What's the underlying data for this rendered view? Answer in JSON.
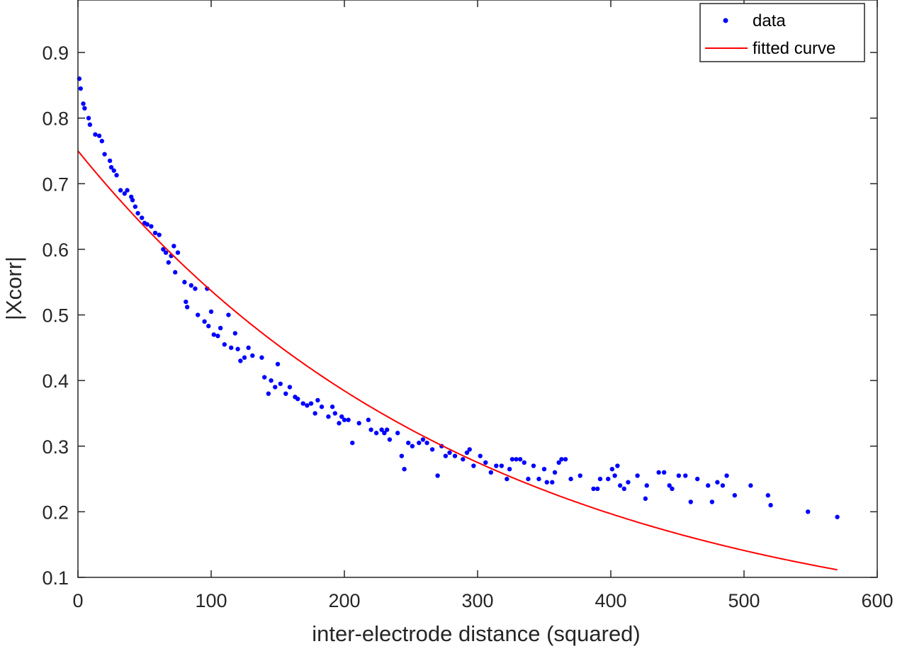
{
  "chart_data": {
    "type": "scatter",
    "title": "",
    "xlabel": "inter-electrode distance (squared)",
    "ylabel": "|Xcorr|",
    "xlim": [
      0,
      600
    ],
    "ylim": [
      0.1,
      0.98
    ],
    "xticks": [
      0,
      100,
      200,
      300,
      400,
      500,
      600
    ],
    "xtick_labels": [
      "0",
      "100",
      "200",
      "300",
      "400",
      "500",
      "600"
    ],
    "yticks": [
      0.1,
      0.2,
      0.3,
      0.4,
      0.5,
      0.6,
      0.7,
      0.8,
      0.9
    ],
    "ytick_labels": [
      "0.1",
      "0.2",
      "0.3",
      "0.4",
      "0.5",
      "0.6",
      "0.7",
      "0.8",
      "0.9"
    ],
    "grid": false,
    "legend_position": "top-right",
    "series": [
      {
        "name": "data",
        "kind": "points",
        "color": "#0000ff",
        "points": [
          [
            1,
            0.86
          ],
          [
            2,
            0.845
          ],
          [
            4,
            0.822
          ],
          [
            5,
            0.815
          ],
          [
            8,
            0.8
          ],
          [
            9,
            0.79
          ],
          [
            13,
            0.775
          ],
          [
            16,
            0.773
          ],
          [
            18,
            0.765
          ],
          [
            20,
            0.745
          ],
          [
            24,
            0.735
          ],
          [
            25,
            0.725
          ],
          [
            27,
            0.72
          ],
          [
            29,
            0.713
          ],
          [
            32,
            0.69
          ],
          [
            35,
            0.685
          ],
          [
            37,
            0.69
          ],
          [
            40,
            0.68
          ],
          [
            41,
            0.675
          ],
          [
            43,
            0.665
          ],
          [
            45,
            0.655
          ],
          [
            48,
            0.648
          ],
          [
            50,
            0.64
          ],
          [
            52,
            0.638
          ],
          [
            55,
            0.635
          ],
          [
            58,
            0.625
          ],
          [
            61,
            0.622
          ],
          [
            64,
            0.6
          ],
          [
            66,
            0.595
          ],
          [
            68,
            0.58
          ],
          [
            70,
            0.59
          ],
          [
            72,
            0.605
          ],
          [
            73,
            0.565
          ],
          [
            75,
            0.595
          ],
          [
            80,
            0.55
          ],
          [
            81,
            0.52
          ],
          [
            82,
            0.512
          ],
          [
            85,
            0.545
          ],
          [
            88,
            0.54
          ],
          [
            90,
            0.5
          ],
          [
            95,
            0.49
          ],
          [
            97,
            0.54
          ],
          [
            98,
            0.483
          ],
          [
            100,
            0.505
          ],
          [
            102,
            0.47
          ],
          [
            105,
            0.468
          ],
          [
            107,
            0.48
          ],
          [
            110,
            0.455
          ],
          [
            113,
            0.5
          ],
          [
            115,
            0.45
          ],
          [
            118,
            0.472
          ],
          [
            120,
            0.448
          ],
          [
            122,
            0.43
          ],
          [
            125,
            0.435
          ],
          [
            128,
            0.45
          ],
          [
            131,
            0.438
          ],
          [
            138,
            0.435
          ],
          [
            140,
            0.405
          ],
          [
            143,
            0.38
          ],
          [
            145,
            0.4
          ],
          [
            148,
            0.39
          ],
          [
            150,
            0.425
          ],
          [
            152,
            0.395
          ],
          [
            156,
            0.38
          ],
          [
            159,
            0.39
          ],
          [
            163,
            0.375
          ],
          [
            165,
            0.372
          ],
          [
            169,
            0.365
          ],
          [
            172,
            0.362
          ],
          [
            175,
            0.365
          ],
          [
            178,
            0.35
          ],
          [
            180,
            0.37
          ],
          [
            183,
            0.36
          ],
          [
            188,
            0.345
          ],
          [
            191,
            0.36
          ],
          [
            193,
            0.35
          ],
          [
            196,
            0.335
          ],
          [
            198,
            0.345
          ],
          [
            200,
            0.34
          ],
          [
            203,
            0.34
          ],
          [
            206,
            0.305
          ],
          [
            211,
            0.335
          ],
          [
            218,
            0.34
          ],
          [
            220,
            0.325
          ],
          [
            224,
            0.32
          ],
          [
            228,
            0.325
          ],
          [
            230,
            0.32
          ],
          [
            232,
            0.325
          ],
          [
            234,
            0.31
          ],
          [
            240,
            0.32
          ],
          [
            243,
            0.285
          ],
          [
            245,
            0.265
          ],
          [
            248,
            0.305
          ],
          [
            251,
            0.3
          ],
          [
            256,
            0.305
          ],
          [
            259,
            0.31
          ],
          [
            262,
            0.305
          ],
          [
            266,
            0.295
          ],
          [
            270,
            0.255
          ],
          [
            273,
            0.3
          ],
          [
            276,
            0.285
          ],
          [
            279,
            0.29
          ],
          [
            283,
            0.285
          ],
          [
            289,
            0.28
          ],
          [
            292,
            0.29
          ],
          [
            294,
            0.295
          ],
          [
            297,
            0.27
          ],
          [
            302,
            0.285
          ],
          [
            306,
            0.275
          ],
          [
            310,
            0.26
          ],
          [
            314,
            0.27
          ],
          [
            318,
            0.27
          ],
          [
            322,
            0.25
          ],
          [
            324,
            0.265
          ],
          [
            326,
            0.28
          ],
          [
            329,
            0.28
          ],
          [
            332,
            0.28
          ],
          [
            335,
            0.275
          ],
          [
            338,
            0.25
          ],
          [
            342,
            0.27
          ],
          [
            346,
            0.25
          ],
          [
            350,
            0.265
          ],
          [
            352,
            0.245
          ],
          [
            356,
            0.245
          ],
          [
            358,
            0.26
          ],
          [
            361,
            0.275
          ],
          [
            363,
            0.28
          ],
          [
            366,
            0.28
          ],
          [
            370,
            0.25
          ],
          [
            377,
            0.255
          ],
          [
            387,
            0.235
          ],
          [
            390,
            0.235
          ],
          [
            392,
            0.25
          ],
          [
            398,
            0.25
          ],
          [
            401,
            0.265
          ],
          [
            403,
            0.255
          ],
          [
            405,
            0.27
          ],
          [
            407,
            0.24
          ],
          [
            410,
            0.235
          ],
          [
            413,
            0.245
          ],
          [
            420,
            0.255
          ],
          [
            426,
            0.22
          ],
          [
            427,
            0.24
          ],
          [
            436,
            0.26
          ],
          [
            440,
            0.26
          ],
          [
            444,
            0.24
          ],
          [
            446,
            0.235
          ],
          [
            451,
            0.255
          ],
          [
            456,
            0.255
          ],
          [
            460,
            0.215
          ],
          [
            465,
            0.25
          ],
          [
            473,
            0.24
          ],
          [
            476,
            0.215
          ],
          [
            480,
            0.245
          ],
          [
            484,
            0.24
          ],
          [
            487,
            0.255
          ],
          [
            493,
            0.225
          ],
          [
            505,
            0.24
          ],
          [
            518,
            0.225
          ],
          [
            520,
            0.21
          ],
          [
            548,
            0.2
          ],
          [
            570,
            0.192
          ]
        ]
      },
      {
        "name": "fitted curve",
        "kind": "line",
        "color": "#ff0000",
        "model": "0.75*exp(-0.003343*x)",
        "x_range": [
          0,
          570
        ]
      }
    ]
  }
}
